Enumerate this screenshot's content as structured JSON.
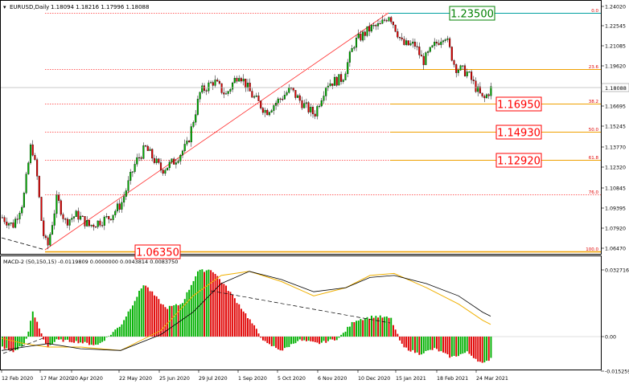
{
  "header": {
    "symbol_label": "EURUSD,Daily",
    "ohlc_values": "1.18094 1.18216 1.17996 1.18088"
  },
  "macd_header": {
    "label": "MACD-2 (50,150,15) -0.0119809 0.0000000 0.0043814 0.0083750"
  },
  "price_axis": {
    "ticks": [
      "1.24020",
      "1.22545",
      "1.21085",
      "1.19620",
      "1.16695",
      "1.15245",
      "1.13770",
      "1.12320",
      "1.10845",
      "1.09395",
      "1.07920",
      "1.06470"
    ],
    "current_price": "1.18088"
  },
  "macd_axis": {
    "ticks": [
      "0.0327166",
      "0.00",
      "-0.015259"
    ]
  },
  "time_axis": {
    "labels": [
      "12 Feb 2020",
      "17 Mar 2020",
      "20 Apr 2020",
      "22 May 2020",
      "25 Jun 2020",
      "29 Jul 2020",
      "1 Sep 2020",
      "5 Oct 2020",
      "6 Nov 2020",
      "10 Dec 2020",
      "15 Jan 2021",
      "18 Feb 2021",
      "24 Mar 2021"
    ]
  },
  "fibonacci": {
    "levels": [
      {
        "ratio": "0.0",
        "price": "1.23500",
        "boxed": true,
        "box_color": "#008000",
        "line_color": "#00a0a0"
      },
      {
        "ratio": "23.6",
        "price": "",
        "boxed": false,
        "line_color": "#f0a000"
      },
      {
        "ratio": "38.2",
        "price": "1.16950",
        "boxed": true,
        "box_color": "#ff0000",
        "line_color": "#f0a000"
      },
      {
        "ratio": "50.0",
        "price": "1.14930",
        "boxed": true,
        "box_color": "#ff0000",
        "line_color": "#f0a000"
      },
      {
        "ratio": "61.8",
        "price": "1.12920",
        "boxed": true,
        "box_color": "#ff0000",
        "line_color": "#f0a000"
      },
      {
        "ratio": "76.0",
        "price": "",
        "boxed": false,
        "line_color": "#ff0000"
      },
      {
        "ratio": "100.0",
        "price": "1.06350",
        "boxed": true,
        "box_color": "#ff0000",
        "line_color": "#f0a000"
      }
    ]
  },
  "colors": {
    "bull_candle": "#00b000",
    "bear_candle": "#e00000",
    "macd_signal": "#f0b000",
    "macd_line": "#000000",
    "fib_trend": "#ff0000"
  },
  "chart_data": {
    "type": "candlestick",
    "symbol": "EURUSD",
    "timeframe": "Daily",
    "x": [
      "12 Feb 2020",
      "17 Mar 2020",
      "20 Apr 2020",
      "22 May 2020",
      "25 Jun 2020",
      "29 Jul 2020",
      "1 Sep 2020",
      "5 Oct 2020",
      "6 Nov 2020",
      "10 Dec 2020",
      "15 Jan 2021",
      "18 Feb 2021",
      "24 Mar 2021"
    ],
    "close_approx": [
      1.081,
      1.098,
      1.085,
      1.105,
      1.128,
      1.178,
      1.187,
      1.17,
      1.18,
      1.212,
      1.212,
      1.21,
      1.178
    ],
    "last_ohlc": {
      "open": 1.18094,
      "high": 1.18216,
      "low": 1.17996,
      "close": 1.18088
    },
    "ylim": [
      1.0608,
      1.242
    ],
    "fibonacci_retracement": {
      "from": 1.0635,
      "to": 1.235,
      "levels": [
        {
          "ratio": 0.0,
          "price": 1.235
        },
        {
          "ratio": 23.6,
          "price": 1.1946
        },
        {
          "ratio": 38.2,
          "price": 1.1695
        },
        {
          "ratio": 50.0,
          "price": 1.1493
        },
        {
          "ratio": 61.8,
          "price": 1.1292
        },
        {
          "ratio": 76.0,
          "price": 1.1046
        },
        {
          "ratio": 100.0,
          "price": 1.0635
        }
      ]
    },
    "macd": {
      "name": "MACD-2 (50,150,15)",
      "values": [
        -0.0119809,
        0.0,
        0.0043814,
        0.008375
      ],
      "ylim": [
        -0.015259,
        0.0327166
      ],
      "histogram_approx": [
        -0.01,
        -0.004,
        -0.004,
        0.01,
        0.018,
        0.022,
        0.014,
        -0.001,
        0.004,
        0.009,
        -0.007,
        -0.01,
        -0.012
      ]
    }
  }
}
